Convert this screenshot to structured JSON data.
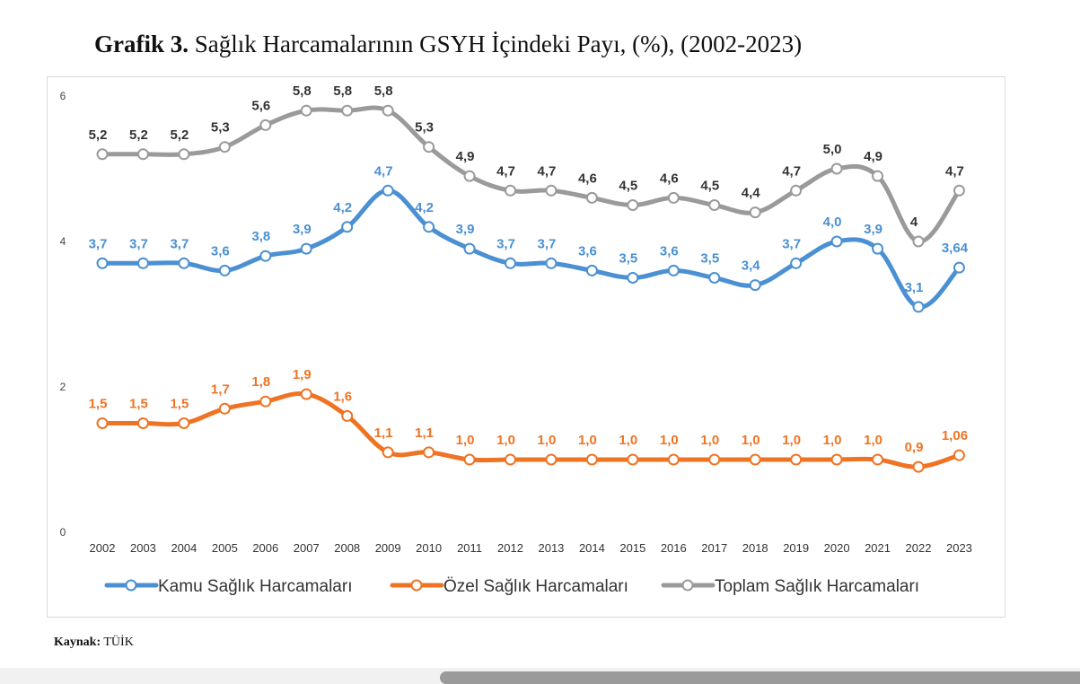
{
  "title": {
    "prefix": "Grafik 3.",
    "text": " Sağlık Harcamalarının GSYH İçindeki Payı, (%), (2002-2023)"
  },
  "source": {
    "label": "Kaynak:",
    "value": " TÜİK"
  },
  "chart_data": {
    "type": "line",
    "title": "Sağlık Harcamalarının GSYH İçindeki Payı, (%), (2002-2023)",
    "xlabel": "",
    "ylabel": "",
    "ylim": [
      0,
      6
    ],
    "yticks": [
      "0",
      "2",
      "4",
      "6"
    ],
    "grid": false,
    "legend_position": "bottom",
    "categories": [
      "2002",
      "2003",
      "2004",
      "2005",
      "2006",
      "2007",
      "2008",
      "2009",
      "2010",
      "2011",
      "2012",
      "2013",
      "2014",
      "2015",
      "2016",
      "2017",
      "2018",
      "2019",
      "2020",
      "2021",
      "2022",
      "2023"
    ],
    "series": [
      {
        "name": "Kamu Sağlık Harcamaları",
        "color": "#4a90d2",
        "values": [
          3.7,
          3.7,
          3.7,
          3.6,
          3.8,
          3.9,
          4.2,
          4.7,
          4.2,
          3.9,
          3.7,
          3.7,
          3.6,
          3.5,
          3.6,
          3.5,
          3.4,
          3.7,
          4.0,
          3.9,
          3.1,
          3.64
        ],
        "labels": [
          "3,7",
          "3,7",
          "3,7",
          "3,6",
          "3,8",
          "3,9",
          "4,2",
          "4,7",
          "4,2",
          "3,9",
          "3,7",
          "3,7",
          "3,6",
          "3,5",
          "3,6",
          "3,5",
          "3,4",
          "3,7",
          "4,0",
          "3,9",
          "3,1",
          "3,64"
        ]
      },
      {
        "name": "Özel Sağlık Harcamaları",
        "color": "#ee7424",
        "values": [
          1.5,
          1.5,
          1.5,
          1.7,
          1.8,
          1.9,
          1.6,
          1.1,
          1.1,
          1.0,
          1.0,
          1.0,
          1.0,
          1.0,
          1.0,
          1.0,
          1.0,
          1.0,
          1.0,
          1.0,
          0.9,
          1.06
        ],
        "labels": [
          "1,5",
          "1,5",
          "1,5",
          "1,7",
          "1,8",
          "1,9",
          "1,6",
          "1,1",
          "1,1",
          "1,0",
          "1,0",
          "1,0",
          "1,0",
          "1,0",
          "1,0",
          "1,0",
          "1,0",
          "1,0",
          "1,0",
          "1,0",
          "0,9",
          "1,06"
        ]
      },
      {
        "name": "Toplam Sağlık Harcamaları",
        "color": "#9a9a9a",
        "values": [
          5.2,
          5.2,
          5.2,
          5.3,
          5.6,
          5.8,
          5.8,
          5.8,
          5.3,
          4.9,
          4.7,
          4.7,
          4.6,
          4.5,
          4.6,
          4.5,
          4.4,
          4.7,
          5.0,
          4.9,
          4,
          4.7
        ],
        "labels": [
          "5,2",
          "5,2",
          "5,2",
          "5,3",
          "5,6",
          "5,8",
          "5,8",
          "5,8",
          "5,3",
          "4,9",
          "4,7",
          "4,7",
          "4,6",
          "4,5",
          "4,6",
          "4,5",
          "4,4",
          "4,7",
          "5,0",
          "4,9",
          "4",
          "4,7"
        ]
      }
    ]
  }
}
